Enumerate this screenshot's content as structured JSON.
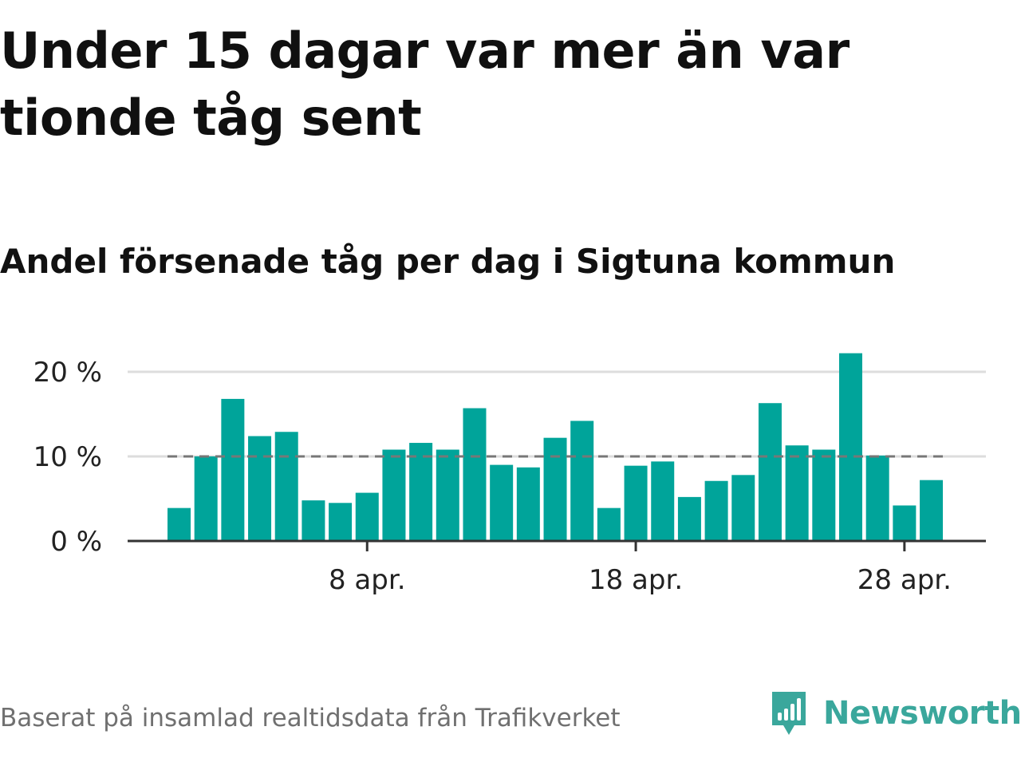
{
  "title": "Under 15 dagar var mer än var tionde tåg sent",
  "subtitle": "Andel försenade tåg per dag i Sigtuna kommun",
  "source": "Baserat på insamlad realtidsdata från Trafikverket",
  "brand": {
    "name": "Newsworthy",
    "icon": "newsworthy-logo-icon",
    "color": "#3aa79c"
  },
  "colors": {
    "bar": "#00a49a",
    "average_line": "#777777",
    "grid": "#dddddd",
    "axis": "#333333"
  },
  "chart_data": {
    "type": "bar",
    "title": "Andel försenade tåg per dag i Sigtuna kommun",
    "xlabel": "",
    "ylabel": "",
    "categories": [
      "1 apr.",
      "2 apr.",
      "3 apr.",
      "4 apr.",
      "5 apr.",
      "6 apr.",
      "7 apr.",
      "8 apr.",
      "9 apr.",
      "10 apr.",
      "11 apr.",
      "12 apr.",
      "13 apr.",
      "14 apr.",
      "15 apr.",
      "16 apr.",
      "17 apr.",
      "18 apr.",
      "19 apr.",
      "20 apr.",
      "21 apr.",
      "22 apr.",
      "23 apr.",
      "24 apr.",
      "25 apr.",
      "26 apr.",
      "27 apr.",
      "28 apr.",
      "29 apr."
    ],
    "values": [
      3.9,
      10,
      16.8,
      12.4,
      12.9,
      4.8,
      4.5,
      5.7,
      10.8,
      11.6,
      10.8,
      15.7,
      9,
      8.7,
      12.2,
      14.2,
      3.9,
      8.9,
      9.4,
      5.2,
      7.1,
      7.8,
      16.3,
      11.3,
      10.8,
      22.2,
      10.1,
      4.2,
      7.2
    ],
    "reference_line": {
      "value": 10,
      "style": "dashed"
    },
    "ylim": [
      0,
      20
    ],
    "y_ticks": [
      {
        "value": 0,
        "label": "0 %"
      },
      {
        "value": 10,
        "label": "10 %"
      },
      {
        "value": 20,
        "label": "20 %"
      }
    ],
    "x_ticks": [
      {
        "index": 7,
        "label": "8 apr."
      },
      {
        "index": 17,
        "label": "18 apr."
      },
      {
        "index": 27,
        "label": "28 apr."
      }
    ],
    "grid": true
  }
}
